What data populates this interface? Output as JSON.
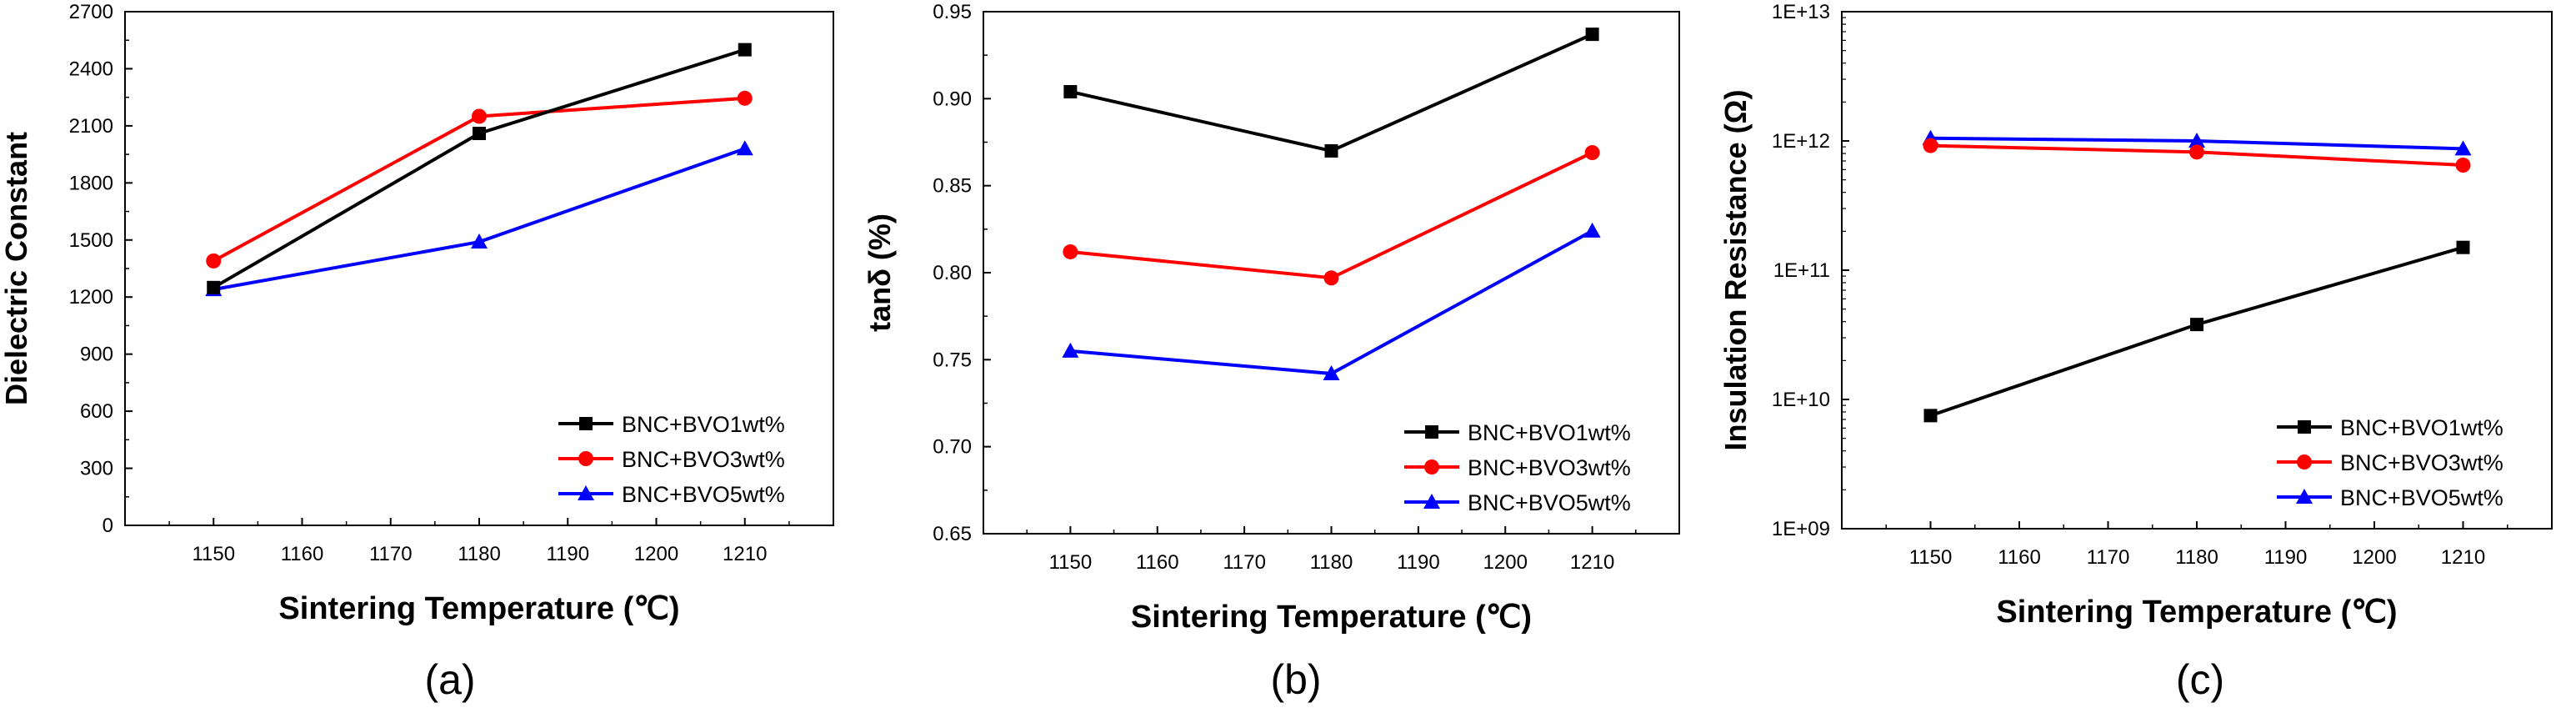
{
  "chart_data": [
    {
      "type": "line",
      "caption": "(a)",
      "xlabel": "Sintering Temperature (℃)",
      "ylabel": "Dielectric Constant",
      "xlim": [
        1140,
        1220
      ],
      "ylim": [
        0,
        2700
      ],
      "yscale": "linear",
      "x_ticks": [
        "1150",
        "1160",
        "1170",
        "1180",
        "1190",
        "1200",
        "1210"
      ],
      "y_ticks": [
        "0",
        "300",
        "600",
        "900",
        "1200",
        "1500",
        "1800",
        "2100",
        "2400",
        "2700"
      ],
      "x": [
        1150,
        1180,
        1210
      ],
      "legend_position": "bottom-right",
      "series": [
        {
          "name": "BNC+BVO1wt%",
          "color": "#000000",
          "marker": "square",
          "values": [
            1250,
            2060,
            2500
          ]
        },
        {
          "name": "BNC+BVO3wt%",
          "color": "#ff0000",
          "marker": "circle",
          "values": [
            1390,
            2150,
            2245
          ]
        },
        {
          "name": "BNC+BVO5wt%",
          "color": "#0000ff",
          "marker": "triangle",
          "values": [
            1240,
            1490,
            1980
          ]
        }
      ]
    },
    {
      "type": "line",
      "caption": "(b)",
      "xlabel": "Sintering Temperature (℃)",
      "ylabel": "tanδ (%)",
      "xlim": [
        1140,
        1220
      ],
      "ylim": [
        0.65,
        0.95
      ],
      "yscale": "linear",
      "x_ticks": [
        "1150",
        "1160",
        "1170",
        "1180",
        "1190",
        "1200",
        "1210"
      ],
      "y_ticks": [
        "0.65",
        "0.70",
        "0.75",
        "0.80",
        "0.85",
        "0.90",
        "0.95"
      ],
      "x": [
        1150,
        1180,
        1210
      ],
      "legend_position": "bottom-right",
      "series": [
        {
          "name": "BNC+BVO1wt%",
          "color": "#000000",
          "marker": "square",
          "values": [
            0.904,
            0.87,
            0.937
          ]
        },
        {
          "name": "BNC+BVO3wt%",
          "color": "#ff0000",
          "marker": "circle",
          "values": [
            0.812,
            0.797,
            0.869
          ]
        },
        {
          "name": "BNC+BVO5wt%",
          "color": "#0000ff",
          "marker": "triangle",
          "values": [
            0.755,
            0.742,
            0.824
          ]
        }
      ]
    },
    {
      "type": "line",
      "caption": "(c)",
      "xlabel": "Sintering Temperature (℃)",
      "ylabel": "Insulation Resistance (Ω)",
      "xlim": [
        1140,
        1220
      ],
      "ylim": [
        1000000000.0,
        10000000000000.0
      ],
      "yscale": "log",
      "x_ticks": [
        "1150",
        "1160",
        "1170",
        "1180",
        "1190",
        "1200",
        "1210"
      ],
      "y_ticks": [
        "1E+09",
        "1E+10",
        "1E+11",
        "1E+12",
        "1E+13"
      ],
      "x": [
        1150,
        1180,
        1210
      ],
      "legend_position": "bottom-right",
      "series": [
        {
          "name": "BNC+BVO1wt%",
          "color": "#000000",
          "marker": "square",
          "values": [
            7500000000.0,
            38000000000.0,
            150000000000.0
          ]
        },
        {
          "name": "BNC+BVO3wt%",
          "color": "#ff0000",
          "marker": "circle",
          "values": [
            920000000000.0,
            820000000000.0,
            650000000000.0
          ]
        },
        {
          "name": "BNC+BVO5wt%",
          "color": "#0000ff",
          "marker": "triangle",
          "values": [
            1050000000000.0,
            1000000000000.0,
            870000000000.0
          ]
        }
      ]
    }
  ]
}
